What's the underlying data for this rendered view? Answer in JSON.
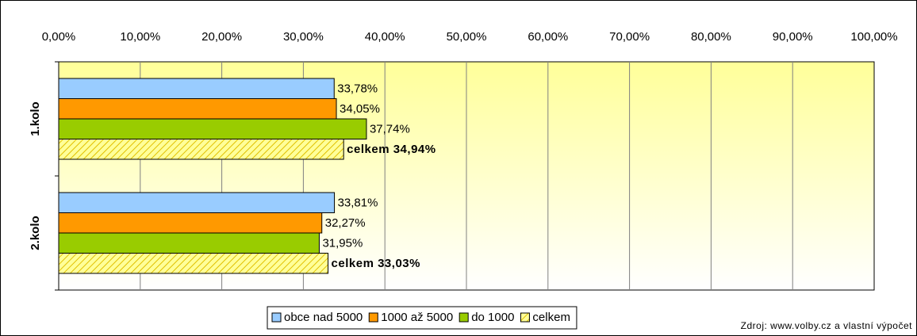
{
  "chart_data": {
    "type": "hbar",
    "categories": [
      "1.kolo",
      "2.kolo"
    ],
    "series": [
      {
        "name": "obce nad 5000",
        "color": "#99ccff",
        "values": [
          33.78,
          33.81
        ],
        "value_labels": [
          "33,78%",
          "33,81%"
        ]
      },
      {
        "name": "1000 až 5000",
        "color": "#ff9900",
        "values": [
          34.05,
          32.27
        ],
        "value_labels": [
          "34,05%",
          "32,27%"
        ]
      },
      {
        "name": "do 1000",
        "color": "#99cc00",
        "values": [
          37.74,
          31.95
        ],
        "value_labels": [
          "37,74%",
          "31,95%"
        ]
      },
      {
        "name": "celkem",
        "color": "#ffff99",
        "hatch": true,
        "values": [
          34.94,
          33.03
        ],
        "value_labels": [
          "celkem 34,94%",
          "celkem 33,03%"
        ]
      }
    ],
    "xlim": [
      0,
      100
    ],
    "xticks": [
      {
        "value": 0,
        "label": "0,00%"
      },
      {
        "value": 10,
        "label": "10,00%"
      },
      {
        "value": 20,
        "label": "20,00%"
      },
      {
        "value": 30,
        "label": "30,00%"
      },
      {
        "value": 40,
        "label": "40,00%"
      },
      {
        "value": 50,
        "label": "50,00%"
      },
      {
        "value": 60,
        "label": "60,00%"
      },
      {
        "value": 70,
        "label": "70,00%"
      },
      {
        "value": 80,
        "label": "80,00%"
      },
      {
        "value": 90,
        "label": "90,00%"
      },
      {
        "value": 100,
        "label": "100,00%"
      }
    ],
    "grid": true,
    "legend": "bottom",
    "source": "Zdroj: www.volby.cz a vlastní výpočet"
  }
}
